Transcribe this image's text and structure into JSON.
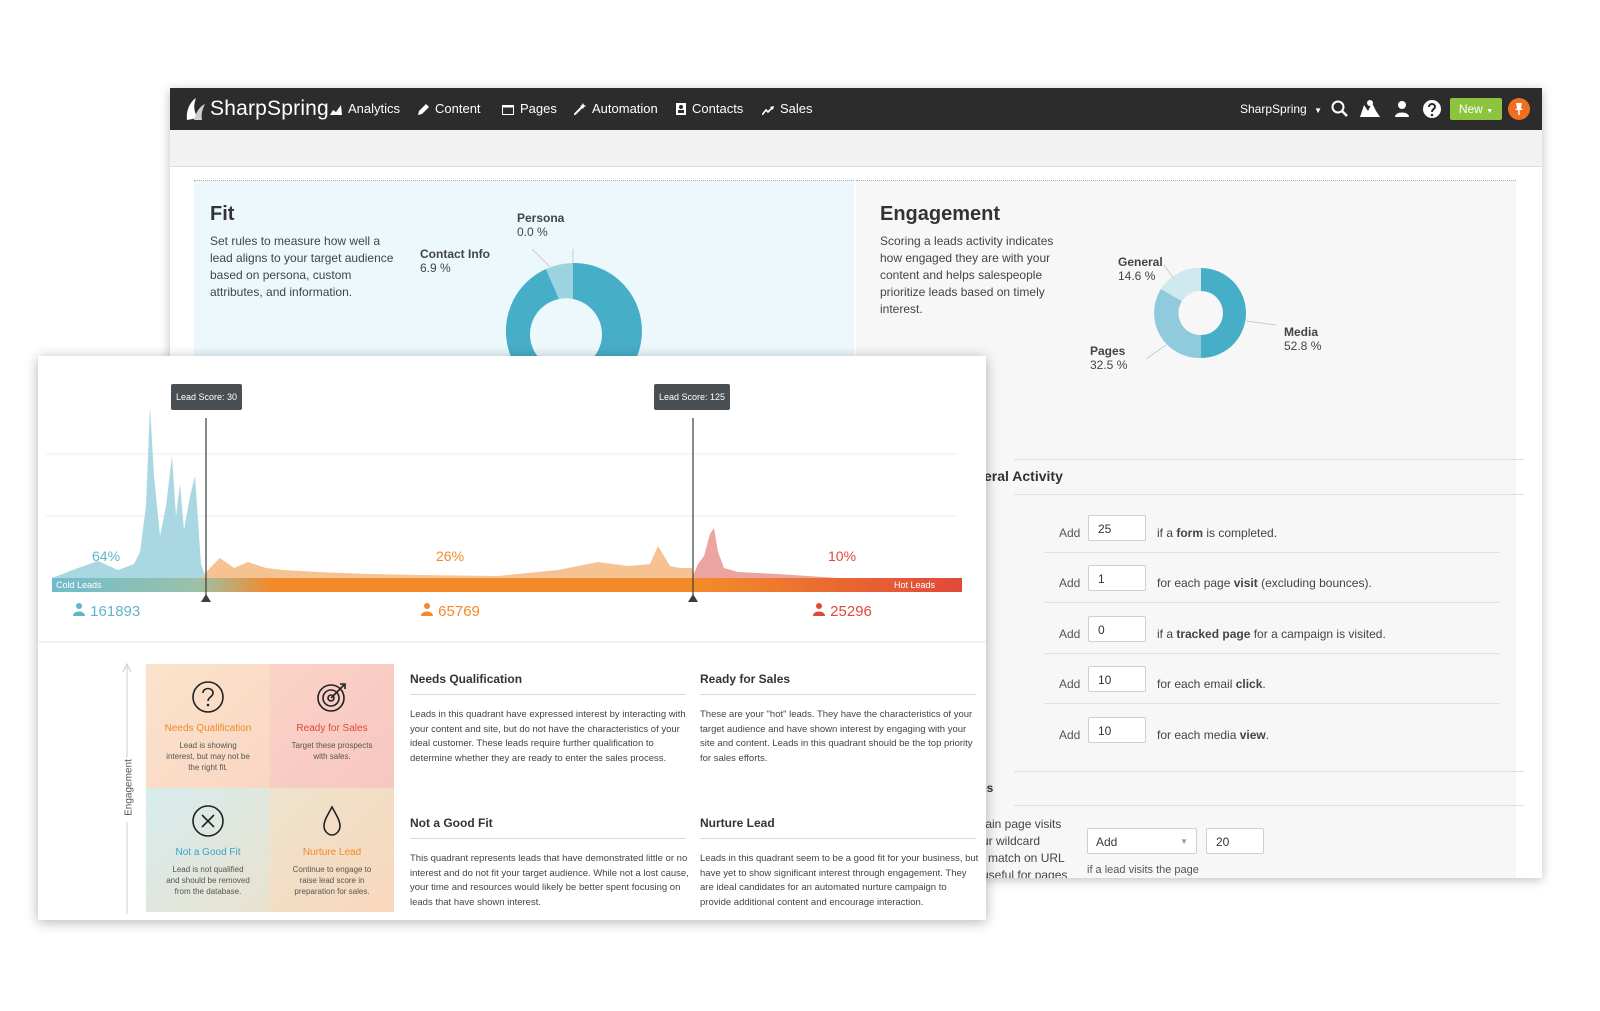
{
  "topnav": {
    "logo": "SharpSpring",
    "items": [
      {
        "label": "Analytics",
        "icon": "analytics-icon"
      },
      {
        "label": "Content",
        "icon": "pencil-icon"
      },
      {
        "label": "Pages",
        "icon": "pages-icon"
      },
      {
        "label": "Automation",
        "icon": "wand-icon"
      },
      {
        "label": "Contacts",
        "icon": "contacts-icon"
      },
      {
        "label": "Sales",
        "icon": "trend-icon"
      }
    ],
    "account": "SharpSpring",
    "new_button": "New"
  },
  "fit": {
    "title": "Fit",
    "description": "Set rules to measure how well a lead aligns to your target audience based on persona, custom attributes, and information.",
    "donut": [
      {
        "label": "Persona",
        "value": "0.0 %"
      },
      {
        "label": "Contact Info",
        "value": "6.9 %"
      }
    ]
  },
  "engagement": {
    "title": "Engagement",
    "description": "Scoring a leads activity indicates how engaged they are with your content and helps salespeople prioritize leads based on timely interest.",
    "donut": [
      {
        "label": "General",
        "value": "14.6 %"
      },
      {
        "label": "Media",
        "value": "52.8 %"
      },
      {
        "label": "Pages",
        "value": "32.5 %"
      }
    ],
    "section_general": "eral Activity",
    "section_pages": "es",
    "rules": [
      {
        "add": "Add",
        "value": "25",
        "text_pre": "if a ",
        "text_bold": "form",
        "text_post": " is completed."
      },
      {
        "add": "Add",
        "value": "1",
        "text_pre": "for each page ",
        "text_bold": "visit",
        "text_post": " (excluding bounces)."
      },
      {
        "add": "Add",
        "value": "0",
        "text_pre": "if a ",
        "text_bold": "tracked page",
        "text_post": " for a campaign is visited."
      },
      {
        "add": "Add",
        "value": "10",
        "text_pre": "for each email ",
        "text_bold": "click",
        "text_post": "."
      },
      {
        "add": "Add",
        "value": "10",
        "text_pre": "for each media ",
        "text_bold": "view",
        "text_post": "."
      }
    ],
    "page_rule": {
      "text_lines": [
        "tain page visits",
        "ur wildcard",
        "i match on URL",
        "useful for pages"
      ],
      "select_value": "Add",
      "input_value": "20",
      "note": "if a lead visits the page"
    }
  },
  "lead_chart": {
    "tooltip_left": "Lead Score: 30",
    "tooltip_right": "Lead Score: 125",
    "bar_left": "Cold Leads",
    "bar_right": "Hot Leads",
    "segments": [
      {
        "pct": "64%",
        "count": "161893",
        "color": "#5fb6c9"
      },
      {
        "pct": "26%",
        "count": "65769",
        "color": "#f28a2a"
      },
      {
        "pct": "10%",
        "count": "25296",
        "color": "#e0493a"
      }
    ]
  },
  "chart_data": {
    "type": "area",
    "title": "",
    "xlabel": "",
    "ylabel": "",
    "markers": [
      30,
      125
    ],
    "segments": [
      {
        "name": "Cold Leads",
        "share_percent": 64,
        "count": 161893
      },
      {
        "name": "",
        "share_percent": 26,
        "count": 65769
      },
      {
        "name": "Hot Leads",
        "share_percent": 10,
        "count": 25296
      }
    ]
  },
  "quadrant": {
    "axis_label": "Engagement",
    "cells": [
      {
        "title": "Needs Qualification",
        "desc": "Lead is showing interest, but may not be the right fit.",
        "icon": "question-icon",
        "color": "#f08a24"
      },
      {
        "title": "Ready for Sales",
        "desc": "Target these prospects with sales.",
        "icon": "target-icon",
        "color": "#e5463b"
      },
      {
        "title": "Not a Good Fit",
        "desc": "Lead is not qualified and should be removed from the database.",
        "icon": "x-circle-icon",
        "color": "#3aa3c5"
      },
      {
        "title": "Nurture Lead",
        "desc": "Continue to engage to raise lead score in preparation for sales.",
        "icon": "drop-icon",
        "color": "#f08a24"
      }
    ],
    "columns": [
      {
        "title": "Needs Qualification",
        "body": "Leads in this quadrant have expressed interest by interacting with your content and site, but do not have the characteristics of your ideal customer. These leads require further qualification to determine whether they are ready to enter the sales process."
      },
      {
        "title": "Ready for Sales",
        "body": "These are your \"hot\" leads. They have the characteristics of your target audience and have shown interest by engaging with your site and content. Leads in this quadrant should be the top priority for sales efforts."
      },
      {
        "title": "Not a Good Fit",
        "body": "This quadrant represents leads that have demonstrated little or no interest and do not fit your target audience. While not a lost cause, your time and resources would likely be better spent focusing on leads that have shown interest."
      },
      {
        "title": "Nurture Lead",
        "body": "Leads in this quadrant seem to be a good fit for your business, but have yet to show significant interest through engagement. They are ideal candidates for an automated nurture campaign to provide additional content and encourage interaction."
      }
    ]
  }
}
